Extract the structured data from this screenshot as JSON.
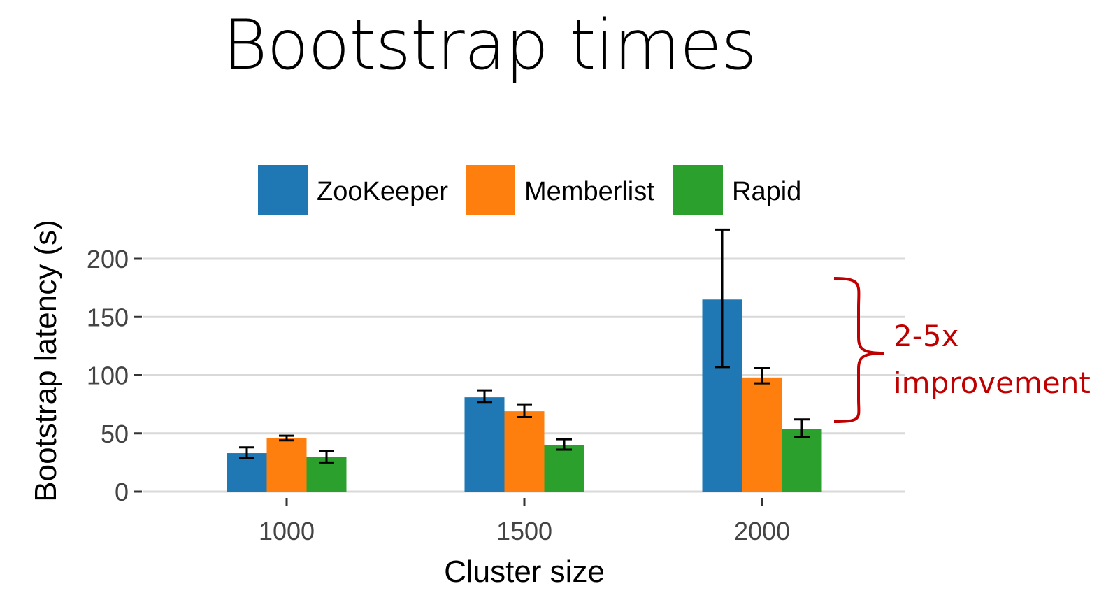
{
  "title": "Bootstrap times",
  "annotation": {
    "lines": [
      "2-5x",
      "improvement"
    ],
    "color": "#c00000"
  },
  "chart_data": {
    "type": "bar",
    "title": "Bootstrap times",
    "xlabel": "Cluster size",
    "ylabel": "Bootstrap latency (s)",
    "categories": [
      "1000",
      "1500",
      "2000"
    ],
    "ylim": [
      0,
      225
    ],
    "yticks": [
      0,
      50,
      100,
      150,
      200
    ],
    "grid": true,
    "legend_position": "top",
    "series": [
      {
        "name": "ZooKeeper",
        "color": "#1f77b4",
        "values": [
          33,
          81,
          165
        ],
        "errors": [
          [
            29,
            38
          ],
          [
            77,
            87
          ],
          [
            107,
            225
          ]
        ]
      },
      {
        "name": "Memberlist",
        "color": "#ff7f0e",
        "values": [
          46,
          69,
          98
        ],
        "errors": [
          [
            44,
            48
          ],
          [
            64,
            75
          ],
          [
            93,
            106
          ]
        ]
      },
      {
        "name": "Rapid",
        "color": "#2ca02c",
        "values": [
          30,
          40,
          54
        ],
        "errors": [
          [
            25,
            35
          ],
          [
            36,
            45
          ],
          [
            47,
            62
          ]
        ]
      }
    ]
  }
}
